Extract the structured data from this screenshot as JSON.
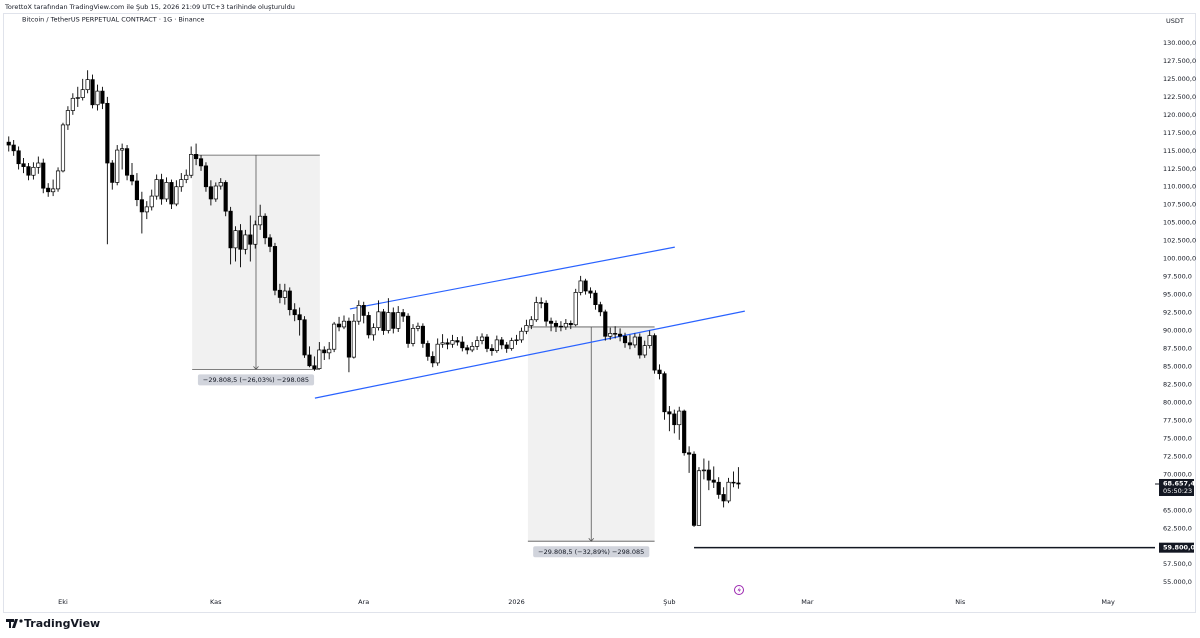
{
  "header": "TorettoX tarafından TradingView.com ile Şub 15, 2026 21:09 UTC+3 tarihinde oluşturuldu",
  "brand": "TradingView",
  "chart_data": {
    "type": "candlestick",
    "title": "Bitcoin / TetherUS PERPETUAL CONTRACT · 1G · Binance",
    "currency": "USDT",
    "up_color": "#ffffff",
    "down_color": "#000000",
    "wick_color": "#000000",
    "xlim": [
      -11.76,
      221.5
    ],
    "xticks": [
      {
        "value": 0,
        "label": "Eki"
      },
      {
        "value": 31,
        "label": "Kas"
      },
      {
        "value": 61,
        "label": "Ara"
      },
      {
        "value": 92,
        "label": "2026"
      },
      {
        "value": 123,
        "label": "Şub"
      },
      {
        "value": 151,
        "label": "Mar"
      },
      {
        "value": 182,
        "label": "Nis"
      },
      {
        "value": 212,
        "label": "May"
      }
    ],
    "ylim": [
      52800,
      131800
    ],
    "yticks": [
      {
        "value": 55000,
        "label": "55.000,0"
      },
      {
        "value": 57500,
        "label": "57.500,0"
      },
      {
        "value": 60000,
        "label": "60.000,0"
      },
      {
        "value": 62500,
        "label": "62.500,0"
      },
      {
        "value": 65000,
        "label": "65.000,0"
      },
      {
        "value": 67500,
        "label": "67.500,0"
      },
      {
        "value": 70000,
        "label": "70.000,0"
      },
      {
        "value": 72500,
        "label": "72.500,0"
      },
      {
        "value": 75000,
        "label": "75.000,0"
      },
      {
        "value": 77500,
        "label": "77.500,0"
      },
      {
        "value": 80000,
        "label": "80.000,0"
      },
      {
        "value": 82500,
        "label": "82.500,0"
      },
      {
        "value": 85000,
        "label": "85.000,0"
      },
      {
        "value": 87500,
        "label": "87.500,0"
      },
      {
        "value": 90000,
        "label": "90.000,0"
      },
      {
        "value": 92500,
        "label": "92.500,0"
      },
      {
        "value": 95000,
        "label": "95.000,0"
      },
      {
        "value": 97500,
        "label": "97.500,0"
      },
      {
        "value": 100000,
        "label": "100.000,0"
      },
      {
        "value": 102500,
        "label": "102.500,0"
      },
      {
        "value": 105000,
        "label": "105.000,0"
      },
      {
        "value": 107500,
        "label": "107.500,0"
      },
      {
        "value": 110000,
        "label": "110.000,0"
      },
      {
        "value": 112500,
        "label": "112.500,0"
      },
      {
        "value": 115000,
        "label": "115.000,0"
      },
      {
        "value": 117500,
        "label": "117.500,0"
      },
      {
        "value": 120000,
        "label": "120.000,0"
      },
      {
        "value": 122500,
        "label": "122.500,0"
      },
      {
        "value": 125000,
        "label": "125.000,0"
      },
      {
        "value": 127500,
        "label": "127.500,0"
      },
      {
        "value": 130000,
        "label": "130.000,0"
      }
    ],
    "grid": false,
    "x": [
      -11,
      -10,
      -9,
      -8,
      -7,
      -6,
      -5,
      -4,
      -3,
      -2,
      -1,
      0,
      1,
      2,
      3,
      4,
      5,
      6,
      7,
      8,
      9,
      10,
      11,
      12,
      13,
      14,
      15,
      16,
      17,
      18,
      19,
      20,
      21,
      22,
      23,
      24,
      25,
      26,
      27,
      28,
      29,
      30,
      31,
      32,
      33,
      34,
      35,
      36,
      37,
      38,
      39,
      40,
      41,
      42,
      43,
      44,
      45,
      46,
      47,
      48,
      49,
      50,
      51,
      52,
      53,
      54,
      55,
      56,
      57,
      58,
      59,
      60,
      61,
      62,
      63,
      64,
      65,
      66,
      67,
      68,
      69,
      70,
      71,
      72,
      73,
      74,
      75,
      76,
      77,
      78,
      79,
      80,
      81,
      82,
      83,
      84,
      85,
      86,
      87,
      88,
      89,
      90,
      91,
      92,
      93,
      94,
      95,
      96,
      97,
      98,
      99,
      100,
      101,
      102,
      103,
      104,
      105,
      106,
      107,
      108,
      109,
      110,
      111,
      112,
      113,
      114,
      115,
      116,
      117,
      118,
      119,
      120,
      121,
      122,
      123,
      124,
      125,
      126,
      127,
      128,
      129,
      130,
      131,
      132,
      133,
      134,
      135,
      136,
      137
    ],
    "candles": [
      [
        116200,
        117000,
        114900,
        115800
      ],
      [
        115800,
        116500,
        114300,
        115000
      ],
      [
        115000,
        115600,
        112400,
        113200
      ],
      [
        113200,
        114000,
        111900,
        112800
      ],
      [
        112800,
        113300,
        110900,
        111600
      ],
      [
        111600,
        113400,
        111000,
        112700
      ],
      [
        112700,
        114200,
        111800,
        113300
      ],
      [
        113300,
        113900,
        109100,
        109800
      ],
      [
        109800,
        110500,
        108600,
        109300
      ],
      [
        109300,
        111000,
        108700,
        109700
      ],
      [
        109700,
        112700,
        109300,
        112200
      ],
      [
        112200,
        118900,
        112000,
        118600
      ],
      [
        118600,
        121200,
        117900,
        120600
      ],
      [
        120600,
        123000,
        120000,
        122300
      ],
      [
        122300,
        123900,
        121100,
        122400
      ],
      [
        122400,
        125000,
        122000,
        123500
      ],
      [
        123500,
        126200,
        123000,
        124900
      ],
      [
        124900,
        125600,
        120900,
        121400
      ],
      [
        121400,
        124200,
        120600,
        123300
      ],
      [
        123300,
        123900,
        120800,
        121600
      ],
      [
        121600,
        122500,
        102000,
        113300
      ],
      [
        113300,
        113700,
        109600,
        110600
      ],
      [
        110600,
        115800,
        110200,
        115100
      ],
      [
        115100,
        116000,
        112400,
        115300
      ],
      [
        115300,
        115800,
        110900,
        111600
      ],
      [
        111600,
        113300,
        110200,
        110800
      ],
      [
        110800,
        111900,
        107300,
        108200
      ],
      [
        108200,
        109300,
        103500,
        106500
      ],
      [
        106500,
        108000,
        105500,
        107200
      ],
      [
        107200,
        109600,
        106700,
        108700
      ],
      [
        108700,
        111700,
        108200,
        111000
      ],
      [
        111000,
        111800,
        107500,
        108300
      ],
      [
        108300,
        111300,
        107900,
        110600
      ],
      [
        110600,
        111000,
        106900,
        107600
      ],
      [
        107600,
        110900,
        107300,
        110000
      ],
      [
        110000,
        111900,
        109300,
        111000
      ],
      [
        111000,
        112400,
        110500,
        111600
      ],
      [
        111600,
        115600,
        111200,
        114500
      ],
      [
        114500,
        116000,
        113000,
        113900
      ],
      [
        113900,
        114400,
        112200,
        112900
      ],
      [
        112900,
        113400,
        109300,
        110000
      ],
      [
        110000,
        110900,
        107400,
        108300
      ],
      [
        108300,
        110600,
        107900,
        110100
      ],
      [
        110100,
        111200,
        109600,
        110600
      ],
      [
        110600,
        110900,
        105900,
        106600
      ],
      [
        106600,
        107200,
        99200,
        101500
      ],
      [
        101500,
        104500,
        99600,
        103900
      ],
      [
        103900,
        104800,
        98800,
        101300
      ],
      [
        101300,
        104000,
        100600,
        103300
      ],
      [
        103300,
        106000,
        99600,
        102000
      ],
      [
        102000,
        105300,
        101400,
        104700
      ],
      [
        104700,
        107500,
        104000,
        105900
      ],
      [
        105900,
        106300,
        102000,
        102900
      ],
      [
        102900,
        103400,
        100900,
        101700
      ],
      [
        101700,
        102200,
        94900,
        95600
      ],
      [
        95600,
        96500,
        93800,
        94600
      ],
      [
        94600,
        96500,
        93600,
        95500
      ],
      [
        95500,
        96000,
        92100,
        92900
      ],
      [
        92900,
        93800,
        91300,
        92200
      ],
      [
        92200,
        93200,
        89300,
        91500
      ],
      [
        91500,
        92000,
        86200,
        86600
      ],
      [
        86600,
        87800,
        84900,
        85100
      ],
      [
        85100,
        86400,
        84400,
        84700
      ],
      [
        84700,
        88400,
        84600,
        87300
      ],
      [
        87300,
        87800,
        85900,
        86900
      ],
      [
        86900,
        88400,
        86000,
        87400
      ],
      [
        87400,
        91200,
        87000,
        90900
      ],
      [
        90900,
        91900,
        89900,
        90500
      ],
      [
        90500,
        92100,
        90200,
        91300
      ],
      [
        91300,
        91800,
        84200,
        86300
      ],
      [
        86300,
        92300,
        86100,
        91300
      ],
      [
        91300,
        94200,
        90800,
        93500
      ],
      [
        93500,
        94000,
        91000,
        92100
      ],
      [
        92100,
        92600,
        88900,
        89400
      ],
      [
        89400,
        91000,
        88600,
        90400
      ],
      [
        90400,
        94200,
        90000,
        92600
      ],
      [
        92600,
        93000,
        89400,
        90000
      ],
      [
        90000,
        94500,
        89600,
        92500
      ],
      [
        92500,
        93200,
        89600,
        90300
      ],
      [
        90300,
        93400,
        89800,
        92500
      ],
      [
        92500,
        93000,
        91200,
        92000
      ],
      [
        92000,
        92400,
        87600,
        88200
      ],
      [
        88200,
        90900,
        87800,
        90300
      ],
      [
        90300,
        91100,
        89900,
        90600
      ],
      [
        90600,
        91000,
        87600,
        88200
      ],
      [
        88200,
        88600,
        85800,
        86400
      ],
      [
        86400,
        87100,
        84900,
        85500
      ],
      [
        85500,
        88900,
        85100,
        88100
      ],
      [
        88100,
        89500,
        87600,
        88300
      ],
      [
        88300,
        88900,
        87400,
        88100
      ],
      [
        88100,
        89400,
        87600,
        88600
      ],
      [
        88600,
        89100,
        87900,
        88400
      ],
      [
        88400,
        89200,
        87100,
        87600
      ],
      [
        87600,
        88000,
        86700,
        87300
      ],
      [
        87300,
        88400,
        87000,
        87800
      ],
      [
        87800,
        89200,
        87300,
        88600
      ],
      [
        88600,
        89600,
        88100,
        89100
      ],
      [
        89100,
        89500,
        87000,
        87500
      ],
      [
        87500,
        88100,
        86500,
        87200
      ],
      [
        87200,
        89300,
        86900,
        88700
      ],
      [
        88700,
        89100,
        87400,
        88000
      ],
      [
        88000,
        88400,
        86900,
        87500
      ],
      [
        87500,
        89000,
        87200,
        88600
      ],
      [
        88600,
        89400,
        88000,
        88700
      ],
      [
        88700,
        90400,
        88300,
        89900
      ],
      [
        89900,
        91500,
        89500,
        90700
      ],
      [
        90700,
        92000,
        90200,
        91500
      ],
      [
        91500,
        94700,
        91200,
        93900
      ],
      [
        93900,
        94600,
        93100,
        93800
      ],
      [
        93800,
        94200,
        90600,
        91300
      ],
      [
        91300,
        91800,
        89900,
        91000
      ],
      [
        91000,
        91400,
        89800,
        90600
      ],
      [
        90600,
        91300,
        89900,
        90500
      ],
      [
        90500,
        91600,
        90100,
        91000
      ],
      [
        91000,
        91400,
        90200,
        90800
      ],
      [
        90800,
        95800,
        90600,
        95300
      ],
      [
        95300,
        97600,
        94900,
        96900
      ],
      [
        96900,
        97200,
        95000,
        95500
      ],
      [
        95500,
        96000,
        94500,
        95200
      ],
      [
        95200,
        95600,
        92900,
        93600
      ],
      [
        93600,
        94000,
        92000,
        92600
      ],
      [
        92600,
        92900,
        88600,
        89200
      ],
      [
        89200,
        90400,
        88700,
        89600
      ],
      [
        89600,
        90600,
        88900,
        89500
      ],
      [
        89500,
        90300,
        88500,
        89200
      ],
      [
        89200,
        89700,
        87600,
        88300
      ],
      [
        88300,
        89400,
        87400,
        88000
      ],
      [
        88000,
        89600,
        87600,
        89100
      ],
      [
        89100,
        89600,
        86100,
        86600
      ],
      [
        86600,
        88600,
        86200,
        87900
      ],
      [
        87900,
        90000,
        87500,
        89300
      ],
      [
        89300,
        89600,
        84000,
        84500
      ],
      [
        84500,
        85300,
        83200,
        84000
      ],
      [
        84000,
        84300,
        77600,
        78700
      ],
      [
        78700,
        79500,
        76000,
        78400
      ],
      [
        78400,
        79000,
        75700,
        76900
      ],
      [
        76900,
        79400,
        74800,
        78800
      ],
      [
        78800,
        79000,
        72600,
        73000
      ],
      [
        73000,
        73900,
        70200,
        72800
      ],
      [
        72800,
        73200,
        62700,
        62900
      ],
      [
        62900,
        71000,
        62900,
        70500
      ],
      [
        70500,
        72200,
        69300,
        70600
      ],
      [
        70600,
        71900,
        67800,
        69200
      ],
      [
        69200,
        71100,
        68100,
        68900
      ],
      [
        68900,
        69600,
        66600,
        67200
      ],
      [
        67200,
        68200,
        65400,
        66300
      ],
      [
        66300,
        69500,
        66000,
        68900
      ],
      [
        68900,
        70400,
        68200,
        68800
      ],
      [
        68800,
        71000,
        68000,
        68657.4
      ]
    ],
    "last_price": {
      "value": 68657.4,
      "label": "68.657,4",
      "countdown": "05:50:23"
    },
    "hline": {
      "value": 59800,
      "label": "59.800,0",
      "from": 128
    },
    "channel_color": "#2962ff",
    "channel": [
      {
        "x": [
          58.2,
          124.1
        ],
        "y": [
          93000,
          101600
        ]
      },
      {
        "x": [
          51.1,
          138.3
        ],
        "y": [
          80600,
          92700
        ]
      }
    ],
    "measures": [
      {
        "x": [
          26.2,
          52.1
        ],
        "y": [
          114400,
          84600
        ],
        "label": "−29.808,5 (−26,03%) −298.085"
      },
      {
        "x": [
          94.3,
          120
        ],
        "y": [
          90500,
          60700
        ],
        "label": "−29.808,5 (−32,89%) −298.085"
      }
    ]
  }
}
